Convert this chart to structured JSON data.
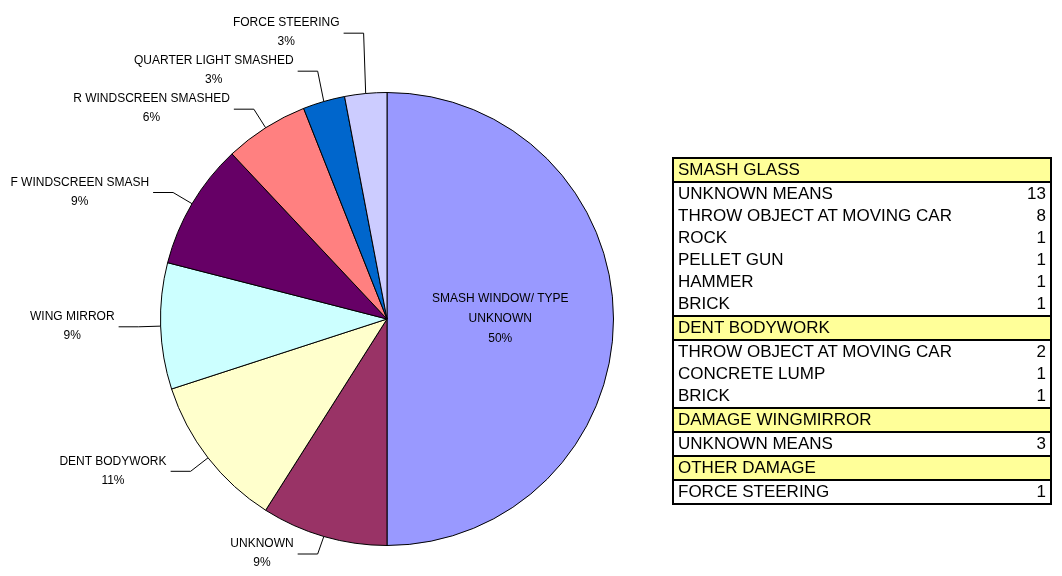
{
  "chart_data": [
    {
      "type": "pie",
      "categories": [
        "SMASH WINDOW/ TYPE UNKNOWN",
        "UNKNOWN",
        "DENT BODYWORK",
        "WING MIRROR",
        "F WINDSCREEN SMASH",
        "R WINDSCREEN SMASHED",
        "QUARTER LIGHT SMASHED",
        "FORCE STEERING"
      ],
      "values": [
        50,
        9,
        11,
        9,
        9,
        6,
        3,
        3
      ],
      "value_labels": [
        "50%",
        "9%",
        "11%",
        "9%",
        "9%",
        "6%",
        "3%",
        "3%"
      ],
      "colors": [
        "#9999ff",
        "#993366",
        "#ffffcc",
        "#ccffff",
        "#660066",
        "#ff8080",
        "#0066cc",
        "#ccccff"
      ],
      "legend": false
    },
    {
      "type": "other",
      "categories": [
        "SMASH GLASS",
        "UNKNOWN MEANS",
        "THROW OBJECT AT MOVING CAR",
        "ROCK",
        "PELLET GUN",
        "HAMMER",
        "BRICK",
        "DENT BODYWORK",
        "THROW OBJECT AT MOVING CAR",
        "CONCRETE LUMP",
        "BRICK",
        "DAMAGE WINGMIRROR",
        "UNKNOWN MEANS",
        "OTHER DAMAGE",
        "FORCE STEERING"
      ],
      "values": [
        null,
        13,
        8,
        1,
        1,
        1,
        1,
        null,
        2,
        1,
        1,
        null,
        3,
        null,
        1
      ],
      "data_labels": true
    }
  ]
}
